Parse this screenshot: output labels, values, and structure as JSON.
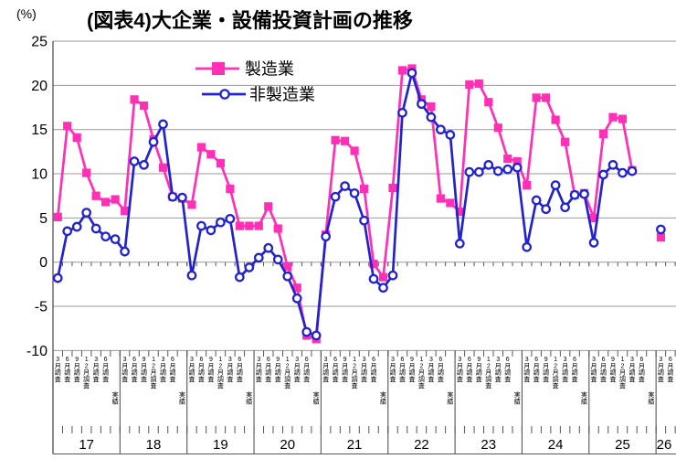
{
  "title": "(図表4)大企業・設備投資計画の推移",
  "y_axis": {
    "unit_label": "(%)",
    "tick_values": [
      25,
      20,
      15,
      10,
      5,
      0,
      -5,
      -10
    ]
  },
  "x_axis": {
    "years": [
      "17",
      "18",
      "19",
      "20",
      "21",
      "22",
      "23",
      "24",
      "25",
      "26"
    ],
    "survey_labels": [
      "3月調査",
      "6月調査",
      "9月調査",
      "12月調査",
      "3月調査",
      "6月調査",
      "実績"
    ]
  },
  "legend": {
    "items": [
      {
        "label": "製造業",
        "marker": "square",
        "color": "#ff2fb6"
      },
      {
        "label": "非製造業",
        "marker": "circle",
        "color": "#2323cd"
      }
    ]
  },
  "colors": {
    "manufacturing": "#ff2fb6",
    "non_manufacturing": "#2323cd",
    "grid": "#999999",
    "axis": "#555555",
    "text": "#000000",
    "background": "#ffffff"
  },
  "chart_data": {
    "type": "line",
    "title": "(図表4)大企業・設備投資計画の推移",
    "ylabel": "(%)",
    "ylim": [
      -10,
      25
    ],
    "grid": "horizontal",
    "legend_position": "top-center",
    "x_structure": "10 fiscal years (17-26), 7 survey columns per year: 3月調査/6月調査/9月調査/12月調査/3月調査/6月調査/実績",
    "series": [
      {
        "name": "製造業",
        "marker": "filled-square",
        "color": "#ff2fb6",
        "values_by_year": [
          [
            5.1,
            15.4,
            14.1,
            10.1,
            7.5,
            6.8,
            7.1
          ],
          [
            5.8,
            18.4,
            17.7,
            13.9,
            10.7,
            7.4,
            7.2
          ],
          [
            6.5,
            13.0,
            12.2,
            11.2,
            8.3,
            4.1,
            4.1
          ],
          [
            4.1,
            6.3,
            3.8,
            -0.5,
            -2.9,
            -8.3,
            -8.7
          ],
          [
            3.1,
            13.8,
            13.7,
            12.6,
            8.3,
            -0.2,
            -1.7
          ],
          [
            8.4,
            21.7,
            21.9,
            18.4,
            17.6,
            7.2,
            6.7
          ],
          [
            5.7,
            20.1,
            20.2,
            18.1,
            15.2,
            11.7,
            11.4
          ],
          [
            8.7,
            18.6,
            18.6,
            16.1,
            13.6,
            7.6,
            7.8
          ],
          [
            5.0,
            14.5,
            16.4,
            16.2,
            10.4,
            null,
            null
          ],
          [
            2.8,
            null,
            null,
            null,
            null,
            null,
            null
          ]
        ]
      },
      {
        "name": "非製造業",
        "marker": "open-circle",
        "color": "#2323cd",
        "values_by_year": [
          [
            -1.8,
            3.5,
            4.0,
            5.6,
            3.8,
            2.9,
            2.6
          ],
          [
            1.2,
            11.4,
            11.0,
            13.6,
            15.6,
            7.4,
            7.3
          ],
          [
            -1.5,
            4.1,
            3.6,
            4.5,
            4.9,
            -1.7,
            -0.6
          ],
          [
            0.5,
            1.6,
            0.3,
            -1.6,
            -4.1,
            -7.9,
            -8.3
          ],
          [
            2.9,
            7.4,
            8.6,
            7.8,
            4.7,
            -1.9,
            -2.9
          ],
          [
            -1.5,
            16.9,
            21.4,
            17.9,
            16.4,
            15.0,
            14.4
          ],
          [
            2.1,
            10.2,
            10.2,
            11.0,
            10.3,
            10.5,
            10.7
          ],
          [
            1.7,
            7.0,
            6.0,
            8.7,
            6.2,
            7.6,
            7.7
          ],
          [
            2.2,
            9.9,
            11.0,
            10.1,
            10.3,
            null,
            null
          ],
          [
            3.7,
            null,
            null,
            null,
            null,
            null,
            null
          ]
        ]
      }
    ]
  }
}
